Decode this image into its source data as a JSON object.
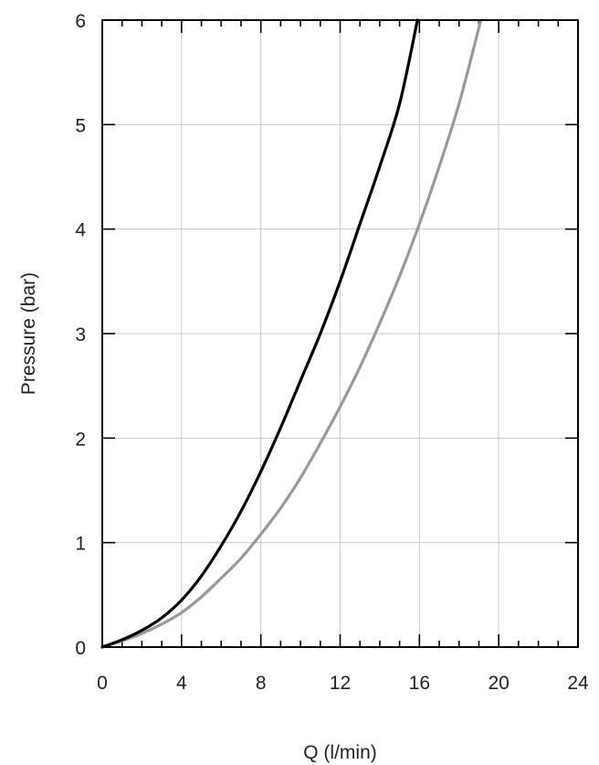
{
  "chart_data": {
    "type": "line",
    "title": "",
    "xlabel": "Q (l/min)",
    "ylabel": "Pressure (bar)",
    "xlim": [
      0,
      24
    ],
    "ylim": [
      0,
      6
    ],
    "x_ticks": [
      0,
      4,
      8,
      12,
      16,
      20,
      24
    ],
    "y_ticks": [
      0,
      1,
      2,
      3,
      4,
      5,
      6
    ],
    "x_tick_labels": [
      "0",
      "4",
      "8",
      "12",
      "16",
      "20",
      "24"
    ],
    "y_tick_labels": [
      "0",
      "1",
      "2",
      "3",
      "4",
      "5",
      "6"
    ],
    "grid": true,
    "legend": "none",
    "series": [
      {
        "color": "#000000",
        "x": [
          0,
          1,
          2,
          3,
          4,
          5,
          6,
          7,
          8,
          9,
          10,
          11,
          12,
          13,
          14,
          15,
          15.9
        ],
        "y": [
          0,
          0.07,
          0.16,
          0.28,
          0.45,
          0.68,
          0.97,
          1.3,
          1.68,
          2.1,
          2.55,
          3.0,
          3.5,
          4.05,
          4.6,
          5.2,
          6.0
        ]
      },
      {
        "color": "#999999",
        "x": [
          0,
          1,
          2,
          3,
          4,
          5,
          6,
          7,
          8,
          9,
          10,
          11,
          12,
          13,
          14,
          15,
          16,
          17,
          18,
          19.1
        ],
        "y": [
          0,
          0.06,
          0.13,
          0.22,
          0.33,
          0.48,
          0.66,
          0.85,
          1.08,
          1.33,
          1.62,
          1.95,
          2.3,
          2.68,
          3.1,
          3.55,
          4.05,
          4.6,
          5.2,
          6.0
        ]
      }
    ]
  }
}
